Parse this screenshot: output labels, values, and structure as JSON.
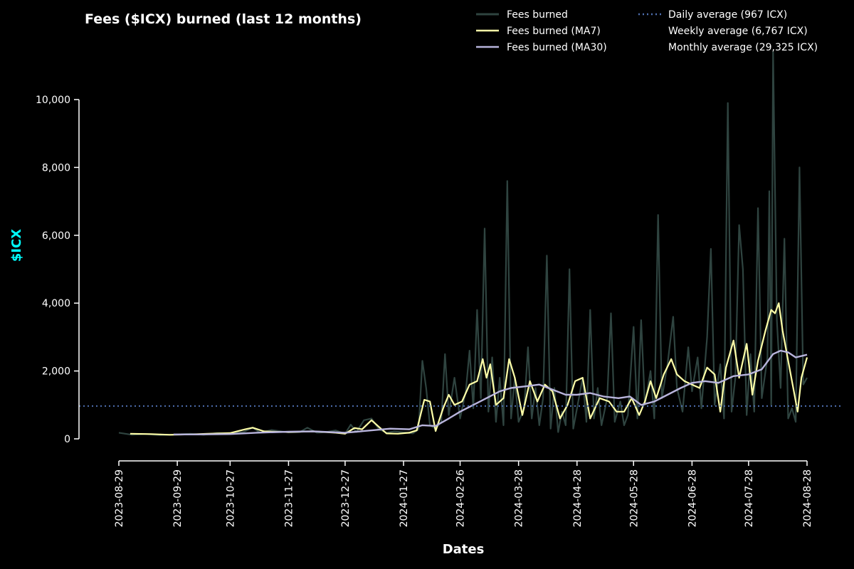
{
  "chart_data": {
    "type": "line",
    "title": "Fees ($ICX) burned (last 12 months)",
    "xlabel": "Dates",
    "ylabel": "$ICX",
    "x_range": [
      "2023-08-29",
      "2024-08-28"
    ],
    "ylim": [
      -650,
      11400
    ],
    "yticks": [
      0,
      2000,
      4000,
      6000,
      8000,
      10000
    ],
    "ytick_labels": [
      "0",
      "2,000",
      "4,000",
      "6,000",
      "8,000",
      "10,000"
    ],
    "xticks": [
      "2023-08-29",
      "2023-09-29",
      "2023-10-27",
      "2023-11-27",
      "2023-12-27",
      "2024-01-27",
      "2024-02-26",
      "2024-03-28",
      "2024-04-28",
      "2024-05-28",
      "2024-06-28",
      "2024-07-28",
      "2024-08-28"
    ],
    "grid": false,
    "legend_position": "top-right",
    "colors": {
      "background": "#000000",
      "fees": "#2f4440",
      "ma7": "#ffffa8",
      "ma30": "#b8b4dc",
      "daily_avg": "#4f6fb0",
      "axis": "#ffffff",
      "ylabel": "#00ffff"
    },
    "series": [
      {
        "name": "Fees burned",
        "points": [
          [
            "2023-08-29",
            180
          ],
          [
            "2023-09-05",
            120
          ],
          [
            "2023-09-12",
            140
          ],
          [
            "2023-09-20",
            110
          ],
          [
            "2023-09-29",
            130
          ],
          [
            "2023-10-06",
            150
          ],
          [
            "2023-10-13",
            120
          ],
          [
            "2023-10-20",
            170
          ],
          [
            "2023-10-27",
            160
          ],
          [
            "2023-11-03",
            200
          ],
          [
            "2023-11-08",
            330
          ],
          [
            "2023-11-12",
            180
          ],
          [
            "2023-11-18",
            260
          ],
          [
            "2023-11-27",
            190
          ],
          [
            "2023-12-03",
            200
          ],
          [
            "2023-12-07",
            330
          ],
          [
            "2023-12-12",
            180
          ],
          [
            "2023-12-17",
            200
          ],
          [
            "2023-12-22",
            250
          ],
          [
            "2023-12-27",
            150
          ],
          [
            "2023-12-30",
            420
          ],
          [
            "2024-01-02",
            200
          ],
          [
            "2024-01-06",
            550
          ],
          [
            "2024-01-10",
            600
          ],
          [
            "2024-01-14",
            280
          ],
          [
            "2024-01-18",
            180
          ],
          [
            "2024-01-22",
            220
          ],
          [
            "2024-01-27",
            190
          ],
          [
            "2024-02-01",
            160
          ],
          [
            "2024-02-04",
            280
          ],
          [
            "2024-02-06",
            2300
          ],
          [
            "2024-02-08",
            1500
          ],
          [
            "2024-02-10",
            400
          ],
          [
            "2024-02-13",
            300
          ],
          [
            "2024-02-16",
            500
          ],
          [
            "2024-02-18",
            2500
          ],
          [
            "2024-02-20",
            700
          ],
          [
            "2024-02-23",
            1800
          ],
          [
            "2024-02-26",
            600
          ],
          [
            "2024-02-29",
            1400
          ],
          [
            "2024-03-02",
            2600
          ],
          [
            "2024-03-04",
            900
          ],
          [
            "2024-03-06",
            3800
          ],
          [
            "2024-03-08",
            1200
          ],
          [
            "2024-03-10",
            6200
          ],
          [
            "2024-03-12",
            800
          ],
          [
            "2024-03-14",
            2400
          ],
          [
            "2024-03-16",
            500
          ],
          [
            "2024-03-18",
            1800
          ],
          [
            "2024-03-20",
            400
          ],
          [
            "2024-03-22",
            7600
          ],
          [
            "2024-03-24",
            600
          ],
          [
            "2024-03-26",
            1800
          ],
          [
            "2024-03-28",
            500
          ],
          [
            "2024-03-31",
            900
          ],
          [
            "2024-04-02",
            2700
          ],
          [
            "2024-04-04",
            600
          ],
          [
            "2024-04-06",
            1500
          ],
          [
            "2024-04-08",
            400
          ],
          [
            "2024-04-10",
            1200
          ],
          [
            "2024-04-12",
            5400
          ],
          [
            "2024-04-14",
            300
          ],
          [
            "2024-04-16",
            1500
          ],
          [
            "2024-04-18",
            200
          ],
          [
            "2024-04-20",
            800
          ],
          [
            "2024-04-22",
            400
          ],
          [
            "2024-04-24",
            5000
          ],
          [
            "2024-04-26",
            300
          ],
          [
            "2024-04-28",
            900
          ],
          [
            "2024-05-01",
            1800
          ],
          [
            "2024-05-03",
            500
          ],
          [
            "2024-05-05",
            3800
          ],
          [
            "2024-05-07",
            600
          ],
          [
            "2024-05-09",
            1500
          ],
          [
            "2024-05-11",
            400
          ],
          [
            "2024-05-14",
            1200
          ],
          [
            "2024-05-16",
            3700
          ],
          [
            "2024-05-18",
            500
          ],
          [
            "2024-05-21",
            1100
          ],
          [
            "2024-05-23",
            400
          ],
          [
            "2024-05-25",
            700
          ],
          [
            "2024-05-28",
            3300
          ],
          [
            "2024-05-30",
            600
          ],
          [
            "2024-06-01",
            3500
          ],
          [
            "2024-06-03",
            1000
          ],
          [
            "2024-06-06",
            2000
          ],
          [
            "2024-06-08",
            600
          ],
          [
            "2024-06-10",
            6600
          ],
          [
            "2024-06-12",
            1200
          ],
          [
            "2024-06-15",
            2200
          ],
          [
            "2024-06-18",
            3600
          ],
          [
            "2024-06-20",
            1500
          ],
          [
            "2024-06-23",
            800
          ],
          [
            "2024-06-26",
            2700
          ],
          [
            "2024-06-28",
            1400
          ],
          [
            "2024-07-01",
            2400
          ],
          [
            "2024-07-03",
            900
          ],
          [
            "2024-07-06",
            3000
          ],
          [
            "2024-07-08",
            5600
          ],
          [
            "2024-07-10",
            1000
          ],
          [
            "2024-07-13",
            2200
          ],
          [
            "2024-07-15",
            600
          ],
          [
            "2024-07-17",
            9900
          ],
          [
            "2024-07-19",
            800
          ],
          [
            "2024-07-21",
            1800
          ],
          [
            "2024-07-23",
            6300
          ],
          [
            "2024-07-25",
            5000
          ],
          [
            "2024-07-27",
            700
          ],
          [
            "2024-07-29",
            2500
          ],
          [
            "2024-07-31",
            800
          ],
          [
            "2024-08-02",
            6800
          ],
          [
            "2024-08-04",
            1200
          ],
          [
            "2024-08-07",
            2400
          ],
          [
            "2024-08-08",
            7300
          ],
          [
            "2024-08-09",
            1000
          ],
          [
            "2024-08-10",
            11400
          ],
          [
            "2024-08-12",
            3500
          ],
          [
            "2024-08-14",
            1500
          ],
          [
            "2024-08-16",
            5900
          ],
          [
            "2024-08-18",
            600
          ],
          [
            "2024-08-20",
            900
          ],
          [
            "2024-08-22",
            500
          ],
          [
            "2024-08-24",
            8000
          ],
          [
            "2024-08-26",
            1600
          ],
          [
            "2024-08-28",
            1800
          ]
        ]
      },
      {
        "name": "Fees burned (MA7)",
        "points": [
          [
            "2023-09-04",
            150
          ],
          [
            "2023-09-15",
            140
          ],
          [
            "2023-09-25",
            120
          ],
          [
            "2023-10-05",
            130
          ],
          [
            "2023-10-15",
            150
          ],
          [
            "2023-10-27",
            170
          ],
          [
            "2023-11-04",
            280
          ],
          [
            "2023-11-08",
            330
          ],
          [
            "2023-11-14",
            220
          ],
          [
            "2023-11-27",
            200
          ],
          [
            "2023-12-10",
            220
          ],
          [
            "2023-12-22",
            180
          ],
          [
            "2023-12-27",
            150
          ],
          [
            "2024-01-01",
            320
          ],
          [
            "2024-01-05",
            280
          ],
          [
            "2024-01-10",
            550
          ],
          [
            "2024-01-14",
            350
          ],
          [
            "2024-01-18",
            160
          ],
          [
            "2024-01-24",
            150
          ],
          [
            "2024-01-30",
            180
          ],
          [
            "2024-02-03",
            250
          ],
          [
            "2024-02-07",
            1150
          ],
          [
            "2024-02-10",
            1100
          ],
          [
            "2024-02-13",
            230
          ],
          [
            "2024-02-17",
            900
          ],
          [
            "2024-02-20",
            1300
          ],
          [
            "2024-02-23",
            1000
          ],
          [
            "2024-02-27",
            1100
          ],
          [
            "2024-03-02",
            1600
          ],
          [
            "2024-03-06",
            1700
          ],
          [
            "2024-03-09",
            2350
          ],
          [
            "2024-03-11",
            1800
          ],
          [
            "2024-03-13",
            2200
          ],
          [
            "2024-03-16",
            1000
          ],
          [
            "2024-03-20",
            1200
          ],
          [
            "2024-03-23",
            2350
          ],
          [
            "2024-03-26",
            1800
          ],
          [
            "2024-03-30",
            700
          ],
          [
            "2024-04-03",
            1700
          ],
          [
            "2024-04-07",
            1100
          ],
          [
            "2024-04-11",
            1600
          ],
          [
            "2024-04-15",
            1400
          ],
          [
            "2024-04-19",
            600
          ],
          [
            "2024-04-23",
            1000
          ],
          [
            "2024-04-27",
            1700
          ],
          [
            "2024-05-01",
            1800
          ],
          [
            "2024-05-05",
            600
          ],
          [
            "2024-05-10",
            1200
          ],
          [
            "2024-05-15",
            1100
          ],
          [
            "2024-05-19",
            800
          ],
          [
            "2024-05-23",
            800
          ],
          [
            "2024-05-27",
            1200
          ],
          [
            "2024-05-31",
            700
          ],
          [
            "2024-06-03",
            1100
          ],
          [
            "2024-06-06",
            1700
          ],
          [
            "2024-06-09",
            1200
          ],
          [
            "2024-06-13",
            1900
          ],
          [
            "2024-06-17",
            2350
          ],
          [
            "2024-06-20",
            1900
          ],
          [
            "2024-06-24",
            1700
          ],
          [
            "2024-06-28",
            1600
          ],
          [
            "2024-07-02",
            1500
          ],
          [
            "2024-07-06",
            2100
          ],
          [
            "2024-07-10",
            1900
          ],
          [
            "2024-07-13",
            800
          ],
          [
            "2024-07-16",
            2100
          ],
          [
            "2024-07-20",
            2900
          ],
          [
            "2024-07-23",
            1800
          ],
          [
            "2024-07-27",
            2800
          ],
          [
            "2024-07-30",
            1300
          ],
          [
            "2024-08-02",
            2300
          ],
          [
            "2024-08-06",
            3200
          ],
          [
            "2024-08-09",
            3800
          ],
          [
            "2024-08-11",
            3700
          ],
          [
            "2024-08-13",
            4000
          ],
          [
            "2024-08-15",
            3200
          ],
          [
            "2024-08-18",
            2300
          ],
          [
            "2024-08-21",
            1400
          ],
          [
            "2024-08-23",
            800
          ],
          [
            "2024-08-25",
            1800
          ],
          [
            "2024-08-28",
            2400
          ]
        ]
      },
      {
        "name": "Fees burned (MA30)",
        "points": [
          [
            "2023-09-27",
            130
          ],
          [
            "2023-10-10",
            130
          ],
          [
            "2023-10-27",
            140
          ],
          [
            "2023-11-10",
            180
          ],
          [
            "2023-11-27",
            210
          ],
          [
            "2023-12-10",
            220
          ],
          [
            "2023-12-27",
            180
          ],
          [
            "2024-01-10",
            250
          ],
          [
            "2024-01-20",
            300
          ],
          [
            "2024-01-30",
            280
          ],
          [
            "2024-02-06",
            400
          ],
          [
            "2024-02-13",
            380
          ],
          [
            "2024-02-20",
            600
          ],
          [
            "2024-02-26",
            800
          ],
          [
            "2024-03-04",
            1000
          ],
          [
            "2024-03-11",
            1200
          ],
          [
            "2024-03-18",
            1400
          ],
          [
            "2024-03-24",
            1500
          ],
          [
            "2024-04-01",
            1550
          ],
          [
            "2024-04-08",
            1600
          ],
          [
            "2024-04-15",
            1450
          ],
          [
            "2024-04-22",
            1300
          ],
          [
            "2024-04-28",
            1300
          ],
          [
            "2024-05-05",
            1350
          ],
          [
            "2024-05-12",
            1250
          ],
          [
            "2024-05-20",
            1200
          ],
          [
            "2024-05-26",
            1250
          ],
          [
            "2024-06-01",
            1000
          ],
          [
            "2024-06-08",
            1100
          ],
          [
            "2024-06-15",
            1300
          ],
          [
            "2024-06-22",
            1500
          ],
          [
            "2024-06-28",
            1650
          ],
          [
            "2024-07-05",
            1700
          ],
          [
            "2024-07-12",
            1650
          ],
          [
            "2024-07-20",
            1850
          ],
          [
            "2024-07-28",
            1900
          ],
          [
            "2024-08-04",
            2050
          ],
          [
            "2024-08-10",
            2500
          ],
          [
            "2024-08-14",
            2600
          ],
          [
            "2024-08-18",
            2550
          ],
          [
            "2024-08-22",
            2400
          ],
          [
            "2024-08-28",
            2480
          ]
        ]
      }
    ],
    "reference_line": {
      "name": "Daily average (967 ICX)",
      "y": 967,
      "style": "dotted"
    },
    "legend": {
      "col1": [
        "Fees burned",
        "Fees burned (MA7)",
        "Fees burned (MA30)"
      ],
      "col2": [
        "Daily average (967 ICX)",
        "Weekly average (6,767 ICX)",
        "Monthly average (29,325 ICX)"
      ]
    }
  }
}
